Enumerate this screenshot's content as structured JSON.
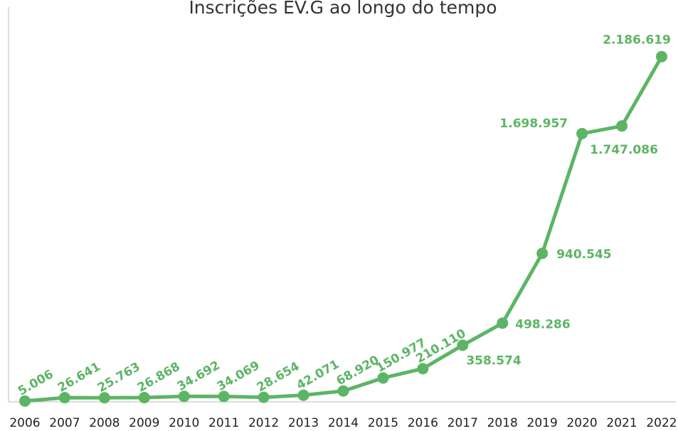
{
  "chart_data": {
    "type": "line",
    "title": "Inscrições EV.G ao longo do tempo",
    "categories": [
      "2006",
      "2007",
      "2008",
      "2009",
      "2010",
      "2011",
      "2012",
      "2013",
      "2014",
      "2015",
      "2016",
      "2017",
      "2018",
      "2019",
      "2020",
      "2021",
      "2022"
    ],
    "values": [
      5006,
      26641,
      25763,
      26868,
      34692,
      34069,
      28654,
      42071,
      68920,
      150977,
      210110,
      358574,
      498286,
      940545,
      1698957,
      1747086,
      2186619
    ],
    "value_labels": [
      "5.006",
      "26.641",
      "25.763",
      "26.868",
      "34.692",
      "34.069",
      "28.654",
      "42.071",
      "68.920",
      "150.977",
      "210.110",
      "358.574",
      "498.286",
      "940.545",
      "1.698.957",
      "1.747.086",
      "2.186.619"
    ],
    "color": "#5cb565",
    "ylim": [
      0,
      2500000
    ]
  }
}
